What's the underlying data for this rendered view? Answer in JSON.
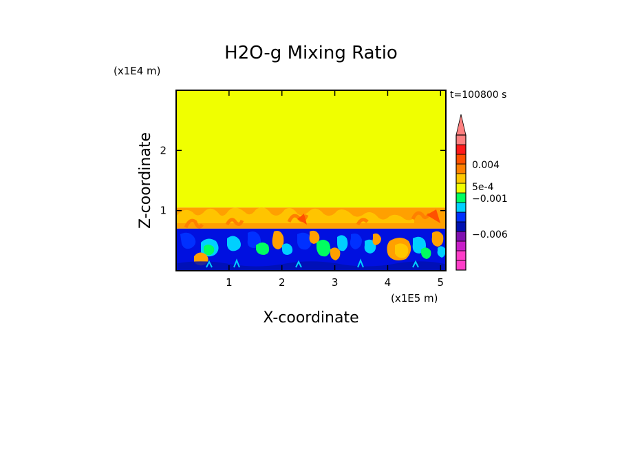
{
  "chart_data": {
    "type": "heatmap",
    "title": "H2O-g Mixing Ratio",
    "xlabel": "X-coordinate",
    "ylabel": "Z-coordinate",
    "x_unit": "(x1E5 m)",
    "y_unit": "(x1E4 m)",
    "time_label": "t=100800 s",
    "xlim": [
      0,
      5.1
    ],
    "ylim": [
      0,
      3.0
    ],
    "x_ticks": [
      1,
      2,
      3,
      4,
      5
    ],
    "x_tick_labels": [
      "1",
      "2",
      "3",
      "4",
      "5"
    ],
    "y_ticks": [
      1,
      2
    ],
    "y_tick_labels": [
      "1",
      "2"
    ],
    "regions": [
      {
        "name": "upper",
        "z_min": 1.05,
        "z_max": 3.0,
        "color": "#f0ff00"
      },
      {
        "name": "transition",
        "z_min": 0.7,
        "z_max": 1.05,
        "color": "#ffa000"
      },
      {
        "name": "boundary-layer",
        "z_min": 0.0,
        "z_max": 0.7,
        "color": "#0010e0"
      }
    ],
    "colorbar": {
      "extend": "both",
      "levels": [
        {
          "color": "#ff3dc8"
        },
        {
          "color": "#ff3dc8"
        },
        {
          "color": "#c81ec8"
        },
        {
          "color": "#8010b0"
        },
        {
          "color": "#0010b0"
        },
        {
          "color": "#0030ff"
        },
        {
          "color": "#00d0ff"
        },
        {
          "color": "#00ff60"
        },
        {
          "color": "#f0ff00"
        },
        {
          "color": "#ffc800"
        },
        {
          "color": "#ff8000"
        },
        {
          "color": "#ff5000"
        },
        {
          "color": "#ff1a1a"
        },
        {
          "color": "#ff8080"
        }
      ],
      "tick_labels": [
        "0.004",
        "5e-4",
        "−0.001",
        "−0.006"
      ]
    }
  }
}
